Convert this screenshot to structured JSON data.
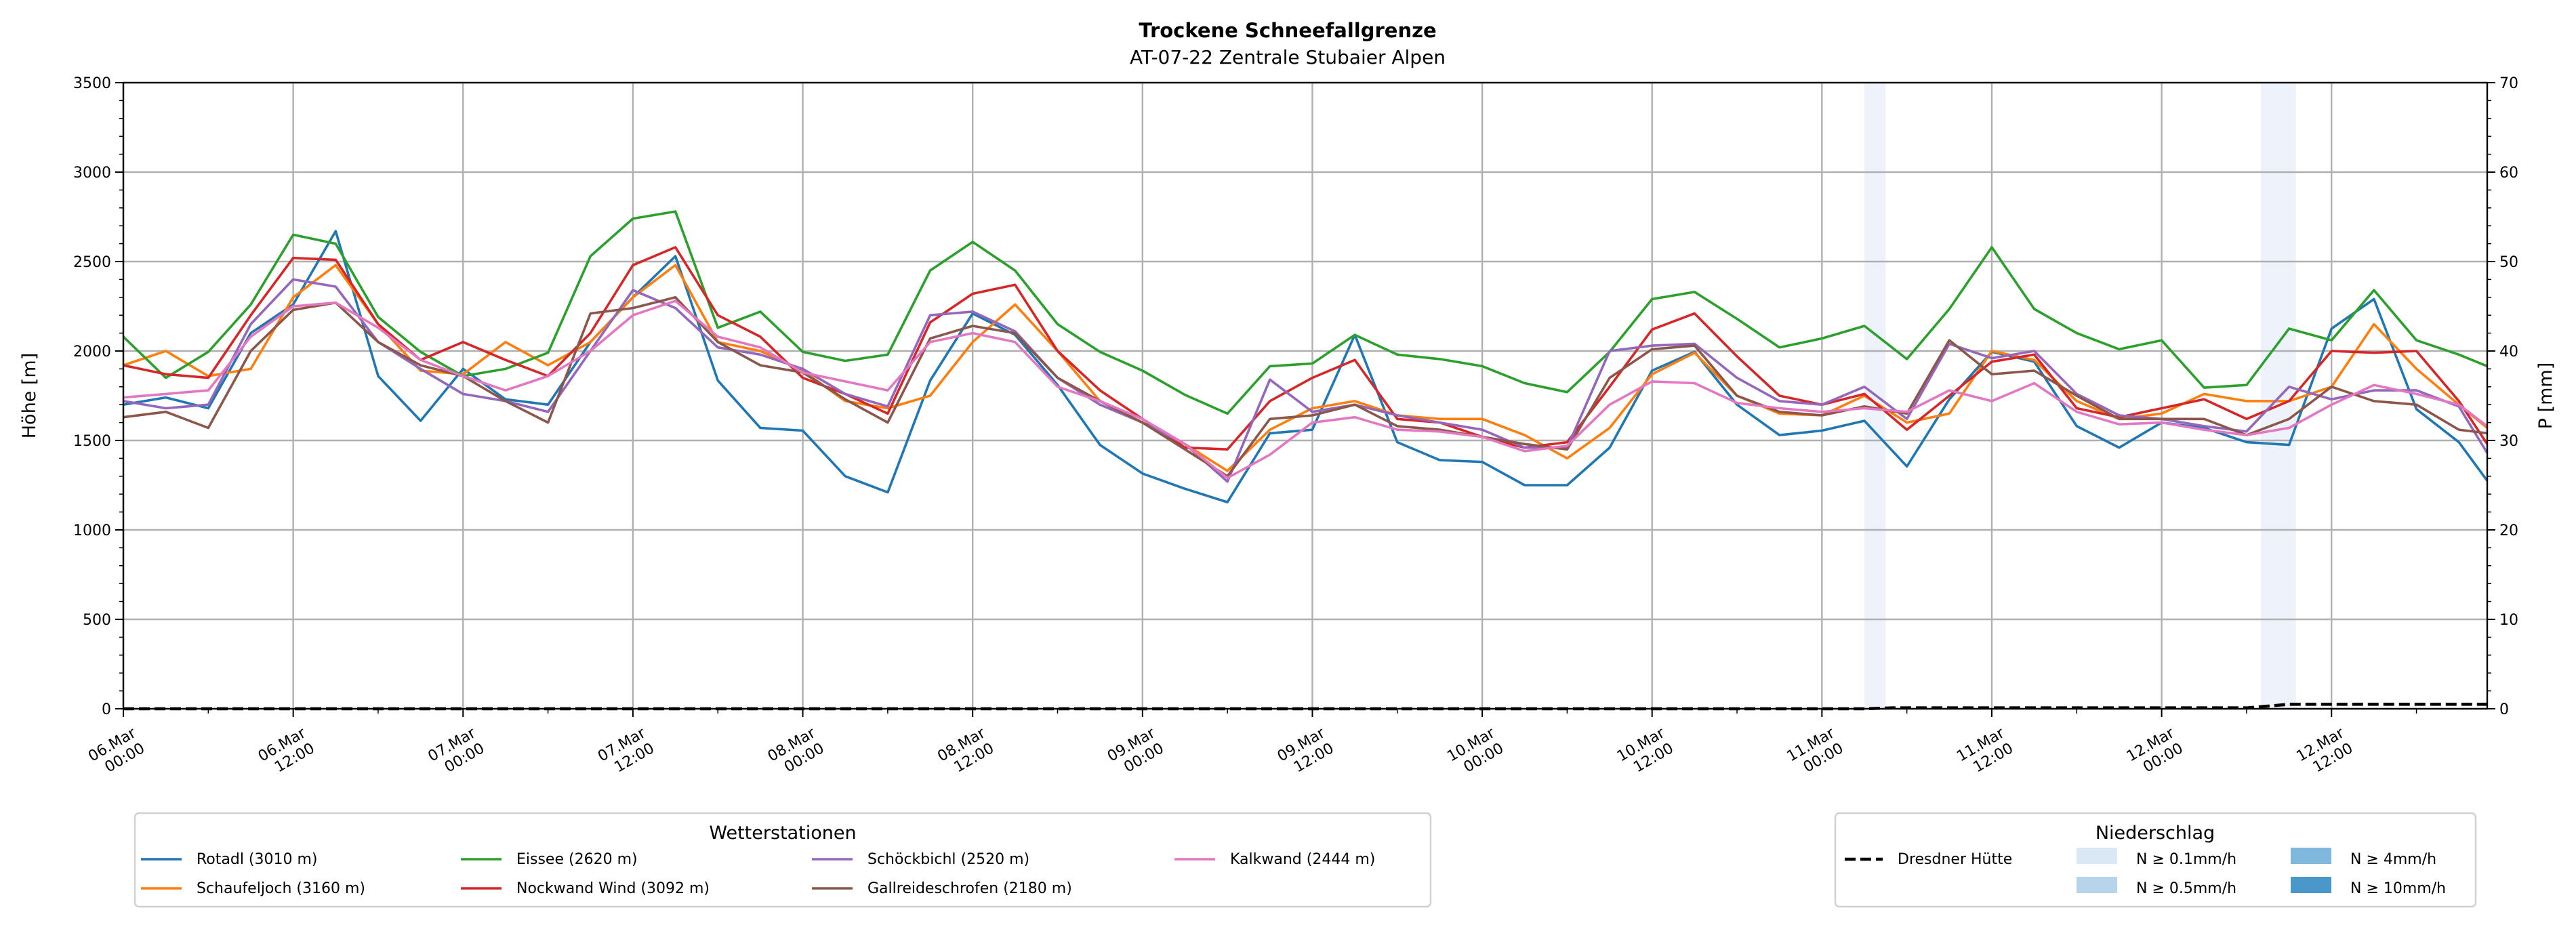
{
  "chart_data": {
    "type": "line",
    "title": "Trockene Schneefallgrenze",
    "subtitle": "AT-07-22 Zentrale Stubaier Alpen",
    "ylabel": "Höhe [m]",
    "y2label": "P [mm]",
    "ylim": [
      0,
      3500
    ],
    "y2lim": [
      0,
      70
    ],
    "yticks": [
      0,
      500,
      1000,
      1500,
      2000,
      2500,
      3000,
      3500
    ],
    "y2ticks": [
      0,
      10,
      20,
      30,
      40,
      50,
      60,
      70
    ],
    "x_unit": "hours since 06.Mar 00:00",
    "xlim": [
      0,
      167
    ],
    "xticks": [
      {
        "h": 0,
        "label": "06.Mar\n00:00"
      },
      {
        "h": 12,
        "label": "06.Mar\n12:00"
      },
      {
        "h": 24,
        "label": "07.Mar\n00:00"
      },
      {
        "h": 36,
        "label": "07.Mar\n12:00"
      },
      {
        "h": 48,
        "label": "08.Mar\n00:00"
      },
      {
        "h": 60,
        "label": "08.Mar\n12:00"
      },
      {
        "h": 72,
        "label": "09.Mar\n00:00"
      },
      {
        "h": 84,
        "label": "09.Mar\n12:00"
      },
      {
        "h": 96,
        "label": "10.Mar\n00:00"
      },
      {
        "h": 108,
        "label": "10.Mar\n12:00"
      },
      {
        "h": 120,
        "label": "11.Mar\n00:00"
      },
      {
        "h": 132,
        "label": "11.Mar\n12:00"
      },
      {
        "h": 144,
        "label": "12.Mar\n00:00"
      },
      {
        "h": 156,
        "label": "12.Mar\n12:00"
      }
    ],
    "grid": true,
    "x": [
      0,
      3,
      6,
      9,
      12,
      15,
      18,
      21,
      24,
      27,
      30,
      33,
      36,
      39,
      42,
      45,
      48,
      51,
      54,
      57,
      60,
      63,
      66,
      69,
      72,
      75,
      78,
      81,
      84,
      87,
      90,
      93,
      96,
      99,
      102,
      105,
      108,
      111,
      114,
      117,
      120,
      123,
      126,
      129,
      132,
      135,
      138,
      141,
      144,
      147,
      150,
      153,
      156,
      159,
      162,
      165,
      167
    ],
    "series": [
      {
        "name": "Rotadl (3010 m)",
        "color": "#1f77b4",
        "values": [
          1700,
          1740,
          1680,
          2100,
          2260,
          2670,
          1860,
          1610,
          1900,
          1730,
          1700,
          2050,
          2300,
          2530,
          1835,
          1570,
          1555,
          1300,
          1210,
          1835,
          2210,
          2090,
          1810,
          1475,
          1315,
          1230,
          1155,
          1540,
          1560,
          2090,
          1490,
          1390,
          1380,
          1250,
          1250,
          1460,
          1890,
          1995,
          1700,
          1530,
          1555,
          1610,
          1355,
          1730,
          1995,
          1940,
          1580,
          1460,
          1600,
          1570,
          1490,
          1475,
          2125,
          2290,
          1675,
          1490,
          1275
        ]
      },
      {
        "name": "Schaufeljoch (3160 m)",
        "color": "#ff7f0e",
        "values": [
          1920,
          2000,
          1860,
          1900,
          2300,
          2480,
          2150,
          1890,
          1870,
          2050,
          1920,
          2050,
          2300,
          2480,
          2050,
          2000,
          1890,
          1720,
          1680,
          1750,
          2050,
          2260,
          2000,
          1720,
          1600,
          1480,
          1330,
          1560,
          1680,
          1720,
          1640,
          1620,
          1620,
          1530,
          1400,
          1570,
          1870,
          1990,
          1750,
          1650,
          1640,
          1750,
          1600,
          1650,
          2000,
          1950,
          1720,
          1620,
          1650,
          1760,
          1720,
          1720,
          1800,
          2150,
          1900,
          1700,
          1570
        ]
      },
      {
        "name": "Eissee (2620 m)",
        "color": "#2ca02c",
        "values": [
          2080,
          1850,
          1995,
          2260,
          2650,
          2600,
          2190,
          1995,
          1860,
          1900,
          1990,
          2530,
          2740,
          2780,
          2130,
          2220,
          1995,
          1945,
          1980,
          2450,
          2610,
          2450,
          2150,
          1995,
          1890,
          1755,
          1650,
          1915,
          1930,
          2090,
          1980,
          1955,
          1915,
          1820,
          1770,
          1995,
          2290,
          2330,
          2180,
          2020,
          2070,
          2140,
          1955,
          2235,
          2580,
          2235,
          2100,
          2010,
          2060,
          1795,
          1810,
          2125,
          2060,
          2340,
          2060,
          1980,
          1915
        ]
      },
      {
        "name": "Nockwand Wind (3092 m)",
        "color": "#d62728",
        "values": [
          1920,
          1870,
          1850,
          2200,
          2520,
          2510,
          2150,
          1950,
          2050,
          1950,
          1860,
          2100,
          2480,
          2580,
          2200,
          2080,
          1850,
          1760,
          1650,
          2160,
          2320,
          2370,
          2000,
          1780,
          1620,
          1460,
          1450,
          1720,
          1850,
          1950,
          1620,
          1600,
          1520,
          1460,
          1490,
          1800,
          2120,
          2210,
          1970,
          1750,
          1700,
          1760,
          1560,
          1750,
          1940,
          1980,
          1680,
          1630,
          1680,
          1730,
          1620,
          1720,
          2000,
          1990,
          2000,
          1720,
          1480
        ]
      },
      {
        "name": "Schöckbichl (2520 m)",
        "color": "#9467bd",
        "values": [
          1720,
          1680,
          1700,
          2150,
          2400,
          2360,
          2050,
          1900,
          1760,
          1720,
          1660,
          2000,
          2340,
          2240,
          2020,
          1980,
          1900,
          1760,
          1690,
          2200,
          2220,
          2110,
          1850,
          1700,
          1600,
          1480,
          1270,
          1840,
          1660,
          1700,
          1640,
          1600,
          1560,
          1460,
          1460,
          2000,
          2030,
          2040,
          1850,
          1720,
          1700,
          1800,
          1620,
          2040,
          1960,
          2000,
          1760,
          1640,
          1620,
          1580,
          1550,
          1800,
          1730,
          1780,
          1780,
          1690,
          1430
        ]
      },
      {
        "name": "Gallreideschrofen (2180 m)",
        "color": "#8c564b",
        "values": [
          1630,
          1660,
          1570,
          2000,
          2230,
          2270,
          2050,
          1920,
          1860,
          1720,
          1600,
          2210,
          2240,
          2300,
          2050,
          1920,
          1880,
          1730,
          1600,
          2070,
          2140,
          2100,
          1850,
          1720,
          1600,
          1450,
          1300,
          1620,
          1640,
          1700,
          1580,
          1560,
          1520,
          1480,
          1450,
          1850,
          2010,
          2030,
          1750,
          1660,
          1640,
          1690,
          1650,
          2060,
          1870,
          1890,
          1750,
          1620,
          1620,
          1620,
          1530,
          1620,
          1800,
          1720,
          1700,
          1560,
          1540
        ]
      },
      {
        "name": "Kalkwand (2444 m)",
        "color": "#e377c2",
        "values": [
          1740,
          1760,
          1780,
          2080,
          2250,
          2270,
          2130,
          1950,
          1860,
          1780,
          1860,
          2000,
          2200,
          2280,
          2080,
          2020,
          1880,
          1830,
          1780,
          2050,
          2100,
          2050,
          1800,
          1720,
          1620,
          1480,
          1290,
          1420,
          1600,
          1630,
          1560,
          1550,
          1520,
          1440,
          1470,
          1700,
          1830,
          1820,
          1710,
          1680,
          1660,
          1680,
          1660,
          1780,
          1720,
          1820,
          1660,
          1590,
          1600,
          1560,
          1530,
          1570,
          1700,
          1810,
          1760,
          1700,
          1580
        ]
      }
    ],
    "precip_series": {
      "name": "Dresdner Hütte",
      "axis": "right",
      "x": [
        0,
        123,
        125,
        150,
        153,
        167
      ],
      "values": [
        0,
        0,
        0.1,
        0.1,
        0.5,
        0.5
      ]
    },
    "precip_bands": [
      {
        "start": 123,
        "end": 124.5,
        "category": "N ≥ 0.1mm/h"
      },
      {
        "start": 151,
        "end": 153.5,
        "category": "N ≥ 0.1mm/h"
      }
    ],
    "legend_stations": {
      "title": "Wetterstationen",
      "placement": "bottom-left"
    },
    "legend_precip": {
      "title": "Niederschlag",
      "placement": "bottom-right",
      "line_label": "Dresdner Hütte",
      "categories": [
        {
          "label": "N ≥ 0.1mm/h",
          "color": "#dae8f5"
        },
        {
          "label": "N ≥ 0.5mm/h",
          "color": "#b8d4ea"
        },
        {
          "label": "N ≥ 4mm/h",
          "color": "#7fb8dc"
        },
        {
          "label": "N ≥ 10mm/h",
          "color": "#4a98c9"
        }
      ]
    }
  }
}
